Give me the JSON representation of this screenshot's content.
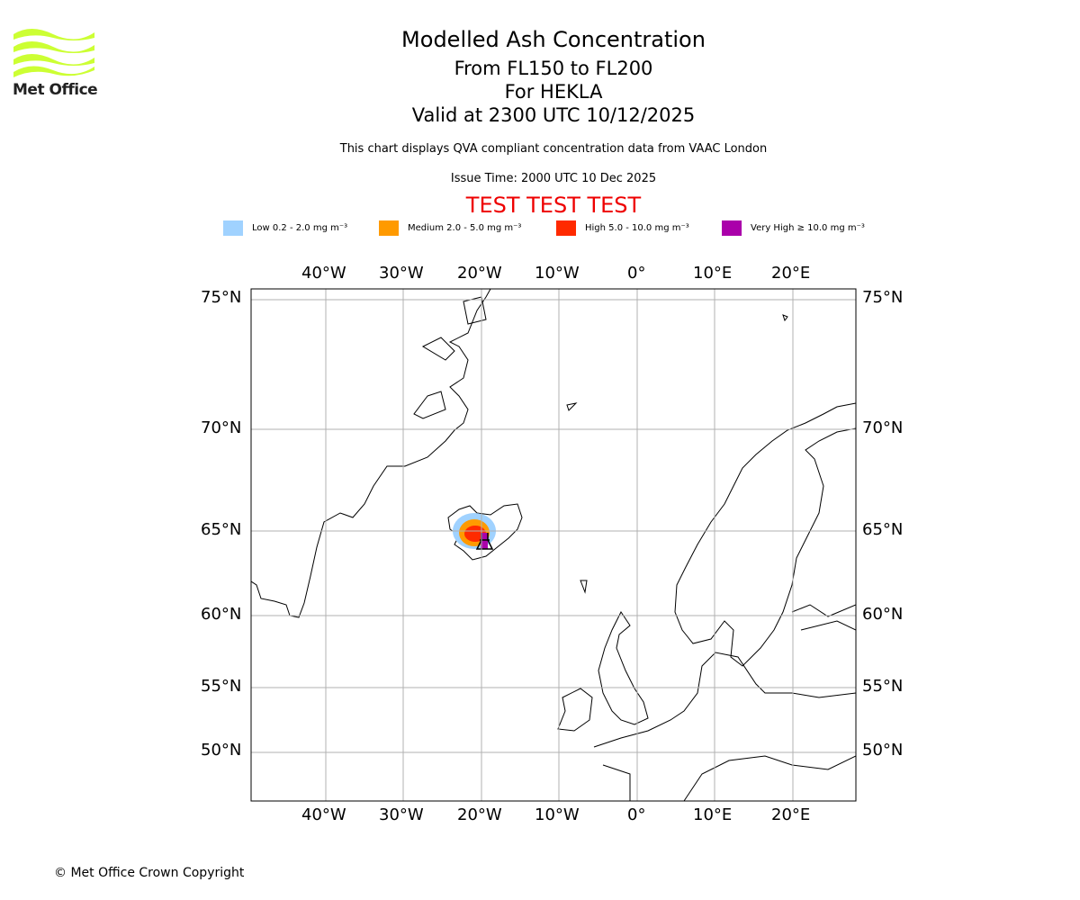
{
  "logo": {
    "text": "Met Office",
    "color": "#ccff33"
  },
  "title": {
    "main": "Modelled Ash Concentration",
    "levels": "From FL150 to FL200",
    "volcano": "For HEKLA",
    "valid": "Valid at 2300 UTC 10/12/2025"
  },
  "subtitle": "This chart displays QVA compliant concentration data from VAAC London",
  "issue_time": "Issue Time: 2000 UTC 10 Dec 2025",
  "test_banner": "TEST TEST TEST",
  "legend": [
    {
      "label": "Low 0.2 - 2.0 mg m⁻³",
      "color": "#a0d2ff"
    },
    {
      "label": "Medium 2.0 - 5.0 mg m⁻³",
      "color": "#ff9a00"
    },
    {
      "label": "High 5.0 - 10.0 mg m⁻³",
      "color": "#ff2a00"
    },
    {
      "label": "Very High ≥ 10.0 mg m⁻³",
      "color": "#aa00aa"
    }
  ],
  "lon_ticks": [
    "40°W",
    "30°W",
    "20°W",
    "10°W",
    "0°",
    "10°E",
    "20°E"
  ],
  "lat_ticks": [
    "75°N",
    "70°N",
    "65°N",
    "60°N",
    "55°N",
    "50°N"
  ],
  "copyright": "© Met Office Crown Copyright"
}
